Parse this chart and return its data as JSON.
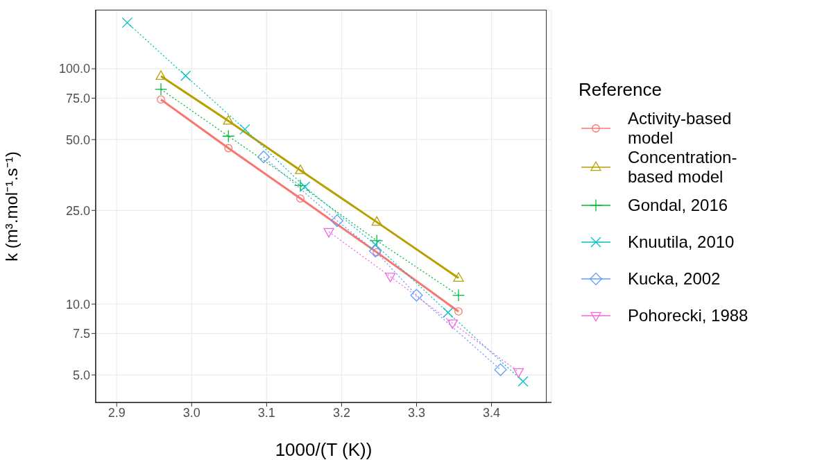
{
  "chart_data": {
    "type": "line",
    "xlabel": "1000/(T (K))",
    "ylabel": "k (m³.mol⁻¹.s⁻¹)",
    "legend_title": "Reference",
    "legend": "right",
    "grid": true,
    "log": "y",
    "xlim": [
      2.872,
      3.48
    ],
    "xticks": [
      2.9,
      {
        "value": 3.0,
        "label": "3.0"
      },
      3.1,
      3.2,
      3.3,
      3.4
    ],
    "ylim": [
      3.82,
      177
    ],
    "yticks": [
      {
        "value": 5,
        "label": "5.0"
      },
      {
        "value": 7.5,
        "label": "7.5"
      },
      {
        "value": 10,
        "label": "10.0"
      },
      {
        "value": 25,
        "label": "25.0"
      },
      {
        "value": 50,
        "label": "50.0"
      },
      {
        "value": 75,
        "label": "75.0"
      },
      {
        "value": 100,
        "label": "100.0"
      }
    ],
    "series": [
      {
        "name": "Activity-based model",
        "color": "#f8766d",
        "marker": "circle",
        "line_style": "solid",
        "x": [
          2.959,
          3.049,
          3.145,
          3.247,
          3.356
        ],
        "values": [
          74,
          46,
          28.1,
          16.6,
          9.3
        ]
      },
      {
        "name": "Concentration-based model",
        "color": "#b79f00",
        "marker": "triangle",
        "line_style": "solid",
        "x": [
          2.959,
          3.049,
          3.145,
          3.247,
          3.356
        ],
        "values": [
          93,
          60,
          37,
          22.3,
          12.9
        ]
      },
      {
        "name": "Gondal, 2016",
        "color": "#00ba38",
        "marker": "plus",
        "line_style": "dotted",
        "x": [
          2.959,
          3.049,
          3.145,
          3.247,
          3.356
        ],
        "values": [
          81.8,
          51.7,
          31.9,
          18.6,
          10.9
        ]
      },
      {
        "name": "Knuutila, 2010",
        "color": "#00bfc4",
        "marker": "cross",
        "line_style": "dotted",
        "x": [
          2.914,
          2.992,
          3.071,
          3.151,
          3.245,
          3.342,
          3.442
        ],
        "values": [
          157,
          93.3,
          55.3,
          31.5,
          17.9,
          9.2,
          4.69
        ]
      },
      {
        "name": "Kucka, 2002",
        "color": "#619cff",
        "marker": "diamond",
        "line_style": "dotted",
        "x": [
          3.096,
          3.194,
          3.245,
          3.3,
          3.412
        ],
        "values": [
          42.2,
          22.6,
          16.8,
          10.9,
          5.26
        ]
      },
      {
        "name": "Pohorecki, 1988",
        "color": "#f564e3",
        "marker": "triangle-down",
        "line_style": "dotted",
        "x": [
          3.183,
          3.265,
          3.348,
          3.436
        ],
        "values": [
          20.3,
          13.1,
          8.3,
          5.15
        ]
      }
    ]
  }
}
